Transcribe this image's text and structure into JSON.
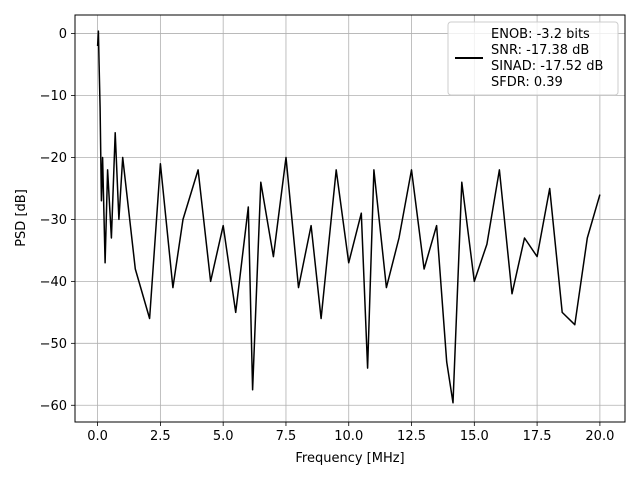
{
  "chart_data": {
    "type": "line",
    "title": "",
    "xlabel": "Frequency [MHz]",
    "ylabel": "PSD [dB]",
    "xlim": [
      -0.9,
      21.0
    ],
    "ylim": [
      -62.7,
      3.0
    ],
    "xticks": [
      0.0,
      2.5,
      5.0,
      7.5,
      10.0,
      12.5,
      15.0,
      17.5,
      20.0
    ],
    "xtick_labels": [
      "0.0",
      "2.5",
      "5.0",
      "7.5",
      "10.0",
      "12.5",
      "15.0",
      "17.5",
      "20.0"
    ],
    "yticks": [
      0,
      -10,
      -20,
      -30,
      -40,
      -50,
      -60
    ],
    "ytick_labels": [
      "0",
      "−10",
      "−20",
      "−30",
      "−40",
      "−50",
      "−60"
    ],
    "grid": true,
    "legend_position": "top-right",
    "line_color": "#000000",
    "legend": [
      "ENOB: -3.2 bits",
      "SNR: -17.38 dB",
      "SINAD: -17.52 dB",
      "SFDR: 0.39"
    ],
    "series": [
      {
        "values_description_free": true,
        "x": [
          0.0,
          0.03,
          0.06,
          0.1,
          0.15,
          0.2,
          0.3,
          0.4,
          0.55,
          0.7,
          0.85,
          1.0,
          1.5,
          2.07,
          2.5,
          3.0,
          3.4,
          4.0,
          4.5,
          5.0,
          5.5,
          6.0,
          6.17,
          6.5,
          7.0,
          7.5,
          8.0,
          8.5,
          8.9,
          9.5,
          10.0,
          10.5,
          10.75,
          11.0,
          11.5,
          12.0,
          12.5,
          13.0,
          13.5,
          13.9,
          14.15,
          14.5,
          15.0,
          15.5,
          16.0,
          16.5,
          17.0,
          17.5,
          18.0,
          18.5,
          19.0,
          19.5,
          20.0
        ],
        "y": [
          -2,
          0.4,
          -5,
          -12,
          -27,
          -20,
          -37,
          -22,
          -33,
          -16,
          -30,
          -20,
          -38,
          -46,
          -21,
          -41,
          -30,
          -22,
          -40,
          -31,
          -45,
          -28,
          -57.5,
          -24,
          -36,
          -20,
          -41,
          -31,
          -46,
          -22,
          -37,
          -29,
          -54,
          -22,
          -41,
          -33,
          -22,
          -38,
          -31,
          -53,
          -59.6,
          -24,
          -40,
          -34,
          -22,
          -42,
          -33,
          -36,
          -25,
          -45,
          -47,
          -33,
          -26
        ]
      }
    ]
  }
}
